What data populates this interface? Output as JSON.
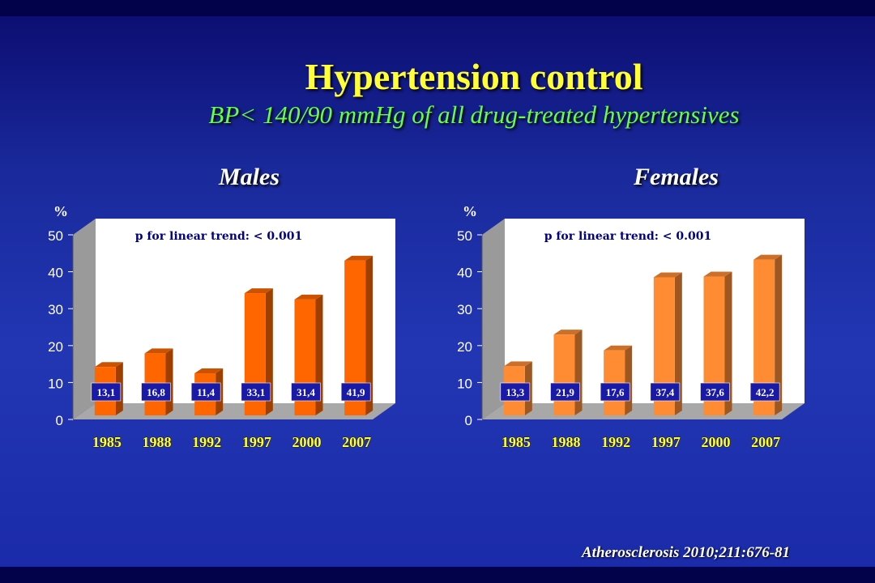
{
  "title": "Hypertension control",
  "subtitle": "BP< 140/90 mmHg of all drug-treated hypertensives",
  "source": "Atherosclerosis 2010;211:676-81",
  "colors": {
    "title": "#ffff33",
    "subtitle": "#66ff44",
    "males_bar": "#ff6600",
    "females_bar": "#ff8c33",
    "label_box": "#1a1aa8",
    "year_label": "#ffff33"
  },
  "chart_data": [
    {
      "type": "bar",
      "title": "Males",
      "ylabel": "%",
      "annotation": "p for linear trend: < 0.001",
      "categories": [
        "1985",
        "1988",
        "1992",
        "1997",
        "2000",
        "2007"
      ],
      "values": [
        13.1,
        16.8,
        11.4,
        33.1,
        31.4,
        41.9
      ],
      "value_labels": [
        "13,1",
        "16,8",
        "11,4",
        "33,1",
        "31,4",
        "41,9"
      ],
      "yticks": [
        0,
        10,
        20,
        30,
        40,
        50
      ],
      "ylim": [
        0,
        50
      ]
    },
    {
      "type": "bar",
      "title": "Females",
      "ylabel": "%",
      "annotation": "p for linear trend: < 0.001",
      "categories": [
        "1985",
        "1988",
        "1992",
        "1997",
        "2000",
        "2007"
      ],
      "values": [
        13.3,
        21.9,
        17.6,
        37.4,
        37.6,
        42.2
      ],
      "value_labels": [
        "13,3",
        "21,9",
        "17,6",
        "37,4",
        "37,6",
        "42,2"
      ],
      "yticks": [
        0,
        10,
        20,
        30,
        40,
        50
      ],
      "ylim": [
        0,
        50
      ]
    }
  ]
}
